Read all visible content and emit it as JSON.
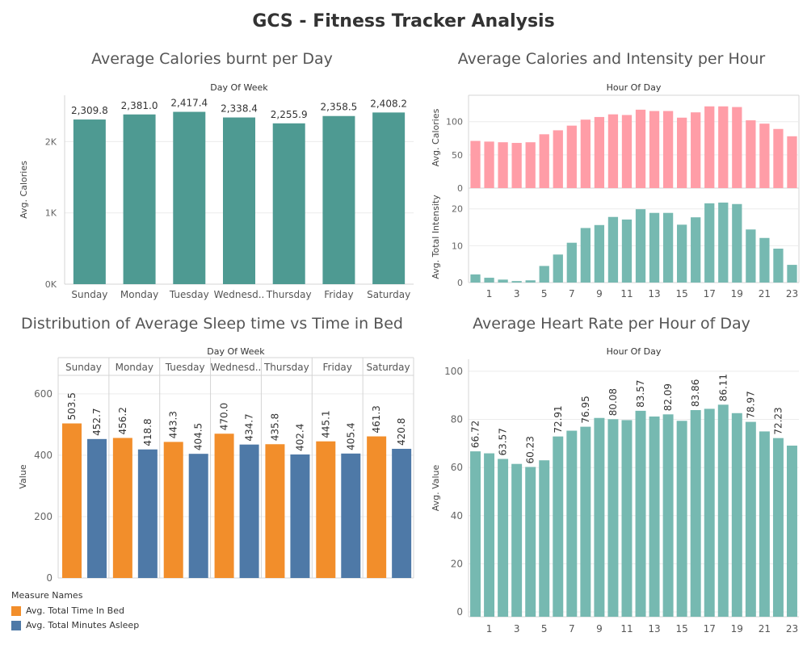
{
  "dashboard_title": "GCS - Fitness Tracker Analysis",
  "colors": {
    "teal": "#4e9a92",
    "teal_light": "#76b9b1",
    "pink": "#ff9da7",
    "orange": "#f28e2b",
    "blue": "#4e79a7",
    "grid": "#ececec",
    "axis": "#d4d4d4"
  },
  "chart_data": [
    {
      "id": "calories_per_day",
      "type": "bar",
      "title": "Average Calories burnt per Day",
      "header": "Day Of Week",
      "ylabel": "Avg. Calories",
      "categories": [
        "Sunday",
        "Monday",
        "Tuesday",
        "Wednesd..",
        "Thursday",
        "Friday",
        "Saturday"
      ],
      "values": [
        2309.8,
        2381.0,
        2417.4,
        2338.4,
        2255.9,
        2358.5,
        2408.2
      ],
      "value_labels": [
        "2,309.8",
        "2,381.0",
        "2,417.4",
        "2,338.4",
        "2,255.9",
        "2,358.5",
        "2,408.2"
      ],
      "ylim": [
        0,
        2650
      ],
      "yticks": [
        0,
        1000,
        2000
      ],
      "ytick_labels": [
        "0K",
        "1K",
        "2K"
      ],
      "color": "#4e9a92"
    },
    {
      "id": "calories_intensity_per_hour",
      "type": "bar",
      "title": "Average Calories and Intensity per Hour",
      "header": "Hour Of Day",
      "x": [
        0,
        1,
        2,
        3,
        4,
        5,
        6,
        7,
        8,
        9,
        10,
        11,
        12,
        13,
        14,
        15,
        16,
        17,
        18,
        19,
        20,
        21,
        22,
        23
      ],
      "xtick_labels": [
        "1",
        "3",
        "5",
        "7",
        "9",
        "11",
        "13",
        "15",
        "17",
        "19",
        "21",
        "23"
      ],
      "xtick_values": [
        1,
        3,
        5,
        7,
        9,
        11,
        13,
        15,
        17,
        19,
        21,
        23
      ],
      "panels": [
        {
          "ylabel": "Avg. Calories",
          "values": [
            71,
            70,
            69,
            68,
            69,
            81,
            87,
            94,
            103,
            107,
            111,
            110,
            118,
            116,
            116,
            106,
            114,
            123,
            123,
            122,
            102,
            97,
            89,
            78
          ],
          "ylim": [
            0,
            130
          ],
          "yticks": [
            0,
            50,
            100
          ],
          "color": "#ff9da7"
        },
        {
          "ylabel": "Avg. Total Intensity",
          "values": [
            2.2,
            1.3,
            0.8,
            0.4,
            0.6,
            4.5,
            7.6,
            10.8,
            14.8,
            15.6,
            17.8,
            17.1,
            19.9,
            18.9,
            18.9,
            15.7,
            17.7,
            21.5,
            21.7,
            21.3,
            14.4,
            12.1,
            9.2,
            4.8
          ],
          "ylim": [
            0,
            23
          ],
          "yticks": [
            0,
            10,
            20
          ],
          "color": "#76b9b1"
        }
      ]
    },
    {
      "id": "sleep_vs_bed",
      "type": "bar",
      "title": "Distribution of Average Sleep time vs Time in Bed",
      "header": "Day Of Week",
      "ylabel": "Value",
      "categories": [
        "Sunday",
        "Monday",
        "Tuesday",
        "Wednesd..",
        "Thursday",
        "Friday",
        "Saturday"
      ],
      "series": [
        {
          "name": "Avg. Total Time In Bed",
          "values": [
            503.5,
            456.2,
            443.3,
            470.0,
            435.8,
            445.1,
            461.3
          ],
          "value_labels": [
            "503.5",
            "456.2",
            "443.3",
            "470.0",
            "435.8",
            "445.1",
            "461.3"
          ],
          "color": "#f28e2b"
        },
        {
          "name": "Avg. Total Minutes Asleep",
          "values": [
            452.7,
            418.8,
            404.5,
            434.7,
            402.4,
            405.4,
            420.8
          ],
          "value_labels": [
            "452.7",
            "418.8",
            "404.5",
            "434.7",
            "402.4",
            "405.4",
            "420.8"
          ],
          "color": "#4e79a7"
        }
      ],
      "legend_title": "Measure Names",
      "ylim": [
        0,
        660
      ],
      "yticks": [
        0,
        200,
        400,
        600
      ]
    },
    {
      "id": "heart_rate_per_hour",
      "type": "bar",
      "title": "Average Heart Rate per Hour of Day",
      "header": "Hour Of Day",
      "ylabel": "Avg. Value",
      "x": [
        0,
        1,
        2,
        3,
        4,
        5,
        6,
        7,
        8,
        9,
        10,
        11,
        12,
        13,
        14,
        15,
        16,
        17,
        18,
        19,
        20,
        21,
        22,
        23
      ],
      "values": [
        66.72,
        65.9,
        63.57,
        61.5,
        60.23,
        63.0,
        72.91,
        75.3,
        76.95,
        80.6,
        80.08,
        79.7,
        83.57,
        81.2,
        82.09,
        79.4,
        83.86,
        84.4,
        86.11,
        82.6,
        78.97,
        75.0,
        72.23,
        69.1
      ],
      "value_labels": [
        "66.72",
        "",
        "63.57",
        "",
        "60.23",
        "",
        "72.91",
        "",
        "76.95",
        "",
        "80.08",
        "",
        "83.57",
        "",
        "82.09",
        "",
        "83.86",
        "",
        "86.11",
        "",
        "78.97",
        "",
        "72.23",
        ""
      ],
      "xtick_labels": [
        "1",
        "3",
        "5",
        "7",
        "9",
        "11",
        "13",
        "15",
        "17",
        "19",
        "21",
        "23"
      ],
      "xtick_values": [
        1,
        3,
        5,
        7,
        9,
        11,
        13,
        15,
        17,
        19,
        21,
        23
      ],
      "ylim": [
        0,
        105
      ],
      "yticks": [
        0,
        20,
        40,
        60,
        80,
        100
      ],
      "color": "#76b9b1"
    }
  ]
}
